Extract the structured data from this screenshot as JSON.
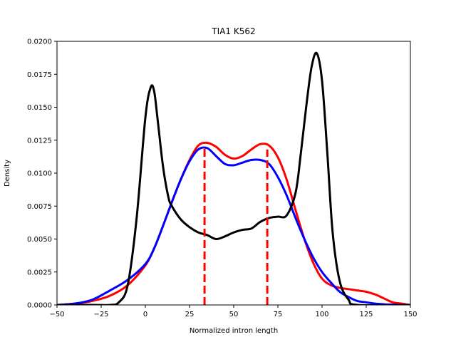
{
  "chart_data": {
    "type": "line",
    "title": "TIA1 K562",
    "xlabel": "Normalized intron length",
    "ylabel": "Density",
    "xlim": [
      -50,
      150
    ],
    "ylim": [
      0,
      0.02
    ],
    "xticks": [
      -50,
      -25,
      0,
      25,
      50,
      75,
      100,
      125,
      150
    ],
    "xtick_labels": [
      "−50",
      "−25",
      "0",
      "25",
      "50",
      "75",
      "100",
      "125",
      "150"
    ],
    "yticks": [
      0,
      0.0025,
      0.005,
      0.0075,
      0.01,
      0.0125,
      0.015,
      0.0175,
      0.02
    ],
    "ytick_labels": [
      "0.0000",
      "0.0025",
      "0.0050",
      "0.0075",
      "0.0100",
      "0.0125",
      "0.0150",
      "0.0175",
      "0.0200"
    ],
    "grid": false,
    "series": [
      {
        "color": "#ff0000",
        "style": "solid",
        "x": [
          -50,
          -40,
          -30,
          -20,
          -10,
          0,
          5,
          10,
          15,
          20,
          25,
          30,
          35,
          40,
          45,
          50,
          55,
          60,
          65,
          70,
          75,
          80,
          85,
          90,
          95,
          100,
          105,
          110,
          115,
          120,
          125,
          130,
          135,
          140,
          145,
          150
        ],
        "y": [
          0,
          0.0001,
          0.0003,
          0.0007,
          0.0015,
          0.003,
          0.0043,
          0.006,
          0.0078,
          0.0095,
          0.011,
          0.0121,
          0.0123,
          0.012,
          0.0114,
          0.0111,
          0.0113,
          0.0118,
          0.0122,
          0.0121,
          0.0112,
          0.0095,
          0.0072,
          0.005,
          0.0032,
          0.002,
          0.0015,
          0.0013,
          0.0012,
          0.0011,
          0.001,
          0.0008,
          0.0005,
          0.0002,
          0.0001,
          0
        ]
      },
      {
        "color": "#0000ff",
        "style": "solid",
        "x": [
          -50,
          -40,
          -30,
          -20,
          -10,
          0,
          5,
          10,
          15,
          20,
          25,
          30,
          35,
          40,
          45,
          50,
          55,
          60,
          65,
          70,
          75,
          80,
          85,
          90,
          95,
          100,
          105,
          110,
          115,
          120,
          125,
          130,
          135,
          140,
          145,
          150
        ],
        "y": [
          0,
          0.0001,
          0.0004,
          0.0011,
          0.0019,
          0.0031,
          0.0043,
          0.006,
          0.0078,
          0.0095,
          0.0109,
          0.0118,
          0.0119,
          0.0113,
          0.0107,
          0.0106,
          0.0108,
          0.011,
          0.011,
          0.0107,
          0.0097,
          0.0083,
          0.0066,
          0.005,
          0.0036,
          0.0025,
          0.0017,
          0.001,
          0.0006,
          0.0003,
          0.0002,
          0.0001,
          5e-05,
          2e-05,
          0,
          0
        ]
      },
      {
        "color": "#000000",
        "style": "solid",
        "x": [
          -50,
          -30,
          -20,
          -15,
          -10,
          -5,
          0,
          3,
          5,
          7,
          10,
          13,
          15,
          20,
          25,
          30,
          35,
          40,
          45,
          50,
          55,
          60,
          65,
          70,
          75,
          80,
          85,
          88,
          91,
          94,
          97,
          100,
          103,
          106,
          110,
          115,
          120,
          150
        ],
        "y": [
          0,
          0,
          0,
          0.0002,
          0.0015,
          0.0065,
          0.0142,
          0.0165,
          0.0162,
          0.014,
          0.0105,
          0.0082,
          0.0075,
          0.0065,
          0.0059,
          0.0055,
          0.0053,
          0.005,
          0.0052,
          0.0055,
          0.0057,
          0.0058,
          0.0063,
          0.0066,
          0.0067,
          0.0068,
          0.0085,
          0.0115,
          0.015,
          0.018,
          0.0191,
          0.017,
          0.0115,
          0.0055,
          0.0018,
          0.0004,
          0,
          0
        ]
      }
    ],
    "vlines": [
      {
        "color": "#ff0000",
        "style": "dashed",
        "x": 33.5,
        "y": 0.0121
      },
      {
        "color": "#ff0000",
        "style": "dashed",
        "x": 69,
        "y": 0.0118
      }
    ]
  }
}
